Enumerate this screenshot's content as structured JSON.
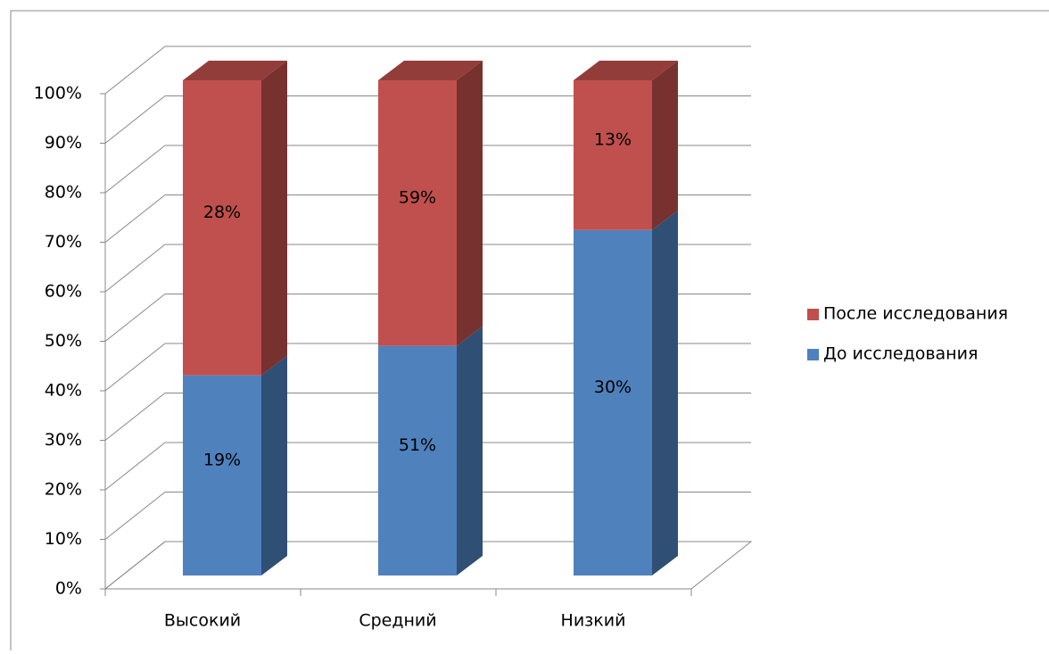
{
  "chart_data": {
    "type": "bar",
    "stacking": "percent",
    "three_d": true,
    "categories": [
      "Высокий",
      "Средний",
      "Низкий"
    ],
    "series": [
      {
        "name": "До исследования",
        "color": "#4f81bd",
        "values": [
          19,
          51,
          30
        ],
        "value_labels": [
          "19%",
          "51%",
          "30%"
        ]
      },
      {
        "name": "После исследования",
        "color": "#c0504d",
        "values": [
          28,
          59,
          13
        ],
        "value_labels": [
          "28%",
          "59%",
          "13%"
        ]
      }
    ],
    "ylim": [
      0,
      100
    ],
    "yticks": [
      {
        "value": 0,
        "label": "0%"
      },
      {
        "value": 10,
        "label": "10%"
      },
      {
        "value": 20,
        "label": "20%"
      },
      {
        "value": 30,
        "label": "30%"
      },
      {
        "value": 40,
        "label": "40%"
      },
      {
        "value": 50,
        "label": "50%"
      },
      {
        "value": 60,
        "label": "60%"
      },
      {
        "value": 70,
        "label": "70%"
      },
      {
        "value": 80,
        "label": "80%"
      },
      {
        "value": 90,
        "label": "90%"
      },
      {
        "value": 100,
        "label": "100%"
      }
    ],
    "grid": true,
    "legend": "right"
  }
}
